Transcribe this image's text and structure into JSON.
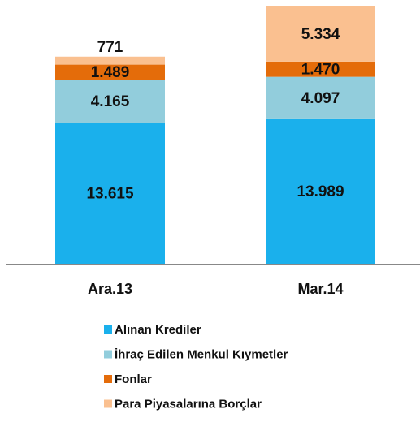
{
  "chart_data": {
    "type": "stacked-bar",
    "categories": [
      "Ara.13",
      "Mar.14"
    ],
    "series": [
      {
        "name": "Alınan Krediler",
        "color": "#1ab0ec",
        "values": [
          13615,
          13989
        ],
        "value_labels": [
          "13.615",
          "13.989"
        ]
      },
      {
        "name": "İhraç Edilen Menkul Kıymetler",
        "color": "#92cddc",
        "values": [
          4165,
          4097
        ],
        "value_labels": [
          "4.165",
          "4.097"
        ]
      },
      {
        "name": "Fonlar",
        "color": "#e46c0a",
        "values": [
          1489,
          1470
        ],
        "value_labels": [
          "1.489",
          "1.470"
        ]
      },
      {
        "name": "Para Piyasalarına Borçlar",
        "color": "#fac090",
        "values": [
          771,
          5334
        ],
        "value_labels": [
          "771",
          "5.334"
        ]
      }
    ],
    "legend": "bottom"
  }
}
